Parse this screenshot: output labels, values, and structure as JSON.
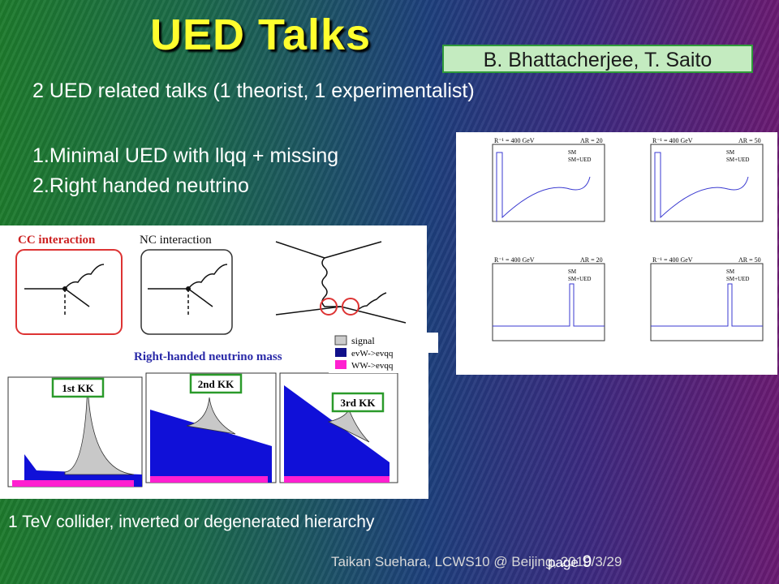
{
  "header": {
    "title": "UED Talks",
    "authors": "B. Bhattacherjee, T. Saito"
  },
  "body": {
    "intro": "2 UED related talks (1 theorist, 1 experimentalist)",
    "items": [
      "1.Minimal UED with llqq + missing",
      "2.Right handed neutrino"
    ],
    "caption": "1 TeV collider, inverted or degenerated hierarchy"
  },
  "figures": {
    "feynman": {
      "labels": [
        "CC interaction",
        "NC interaction"
      ]
    },
    "mass_plot": {
      "title": "Right-handed neutrino mass",
      "panels": [
        "1st KK",
        "2nd KK",
        "3rd KK"
      ],
      "legend": [
        "signal",
        "evW->evqq",
        "WW->evqq"
      ]
    },
    "mued_plot": {
      "labels": [
        "R⁻¹ = 400 GeV",
        "ΛR = 20",
        "ΛR = 50",
        "SM",
        "SM+UED"
      ]
    }
  },
  "footer": {
    "credit": "Taikan Suehara, LCWS10 @ Beijing, 2010/3/29",
    "page_label": "page",
    "page_number": "9"
  }
}
